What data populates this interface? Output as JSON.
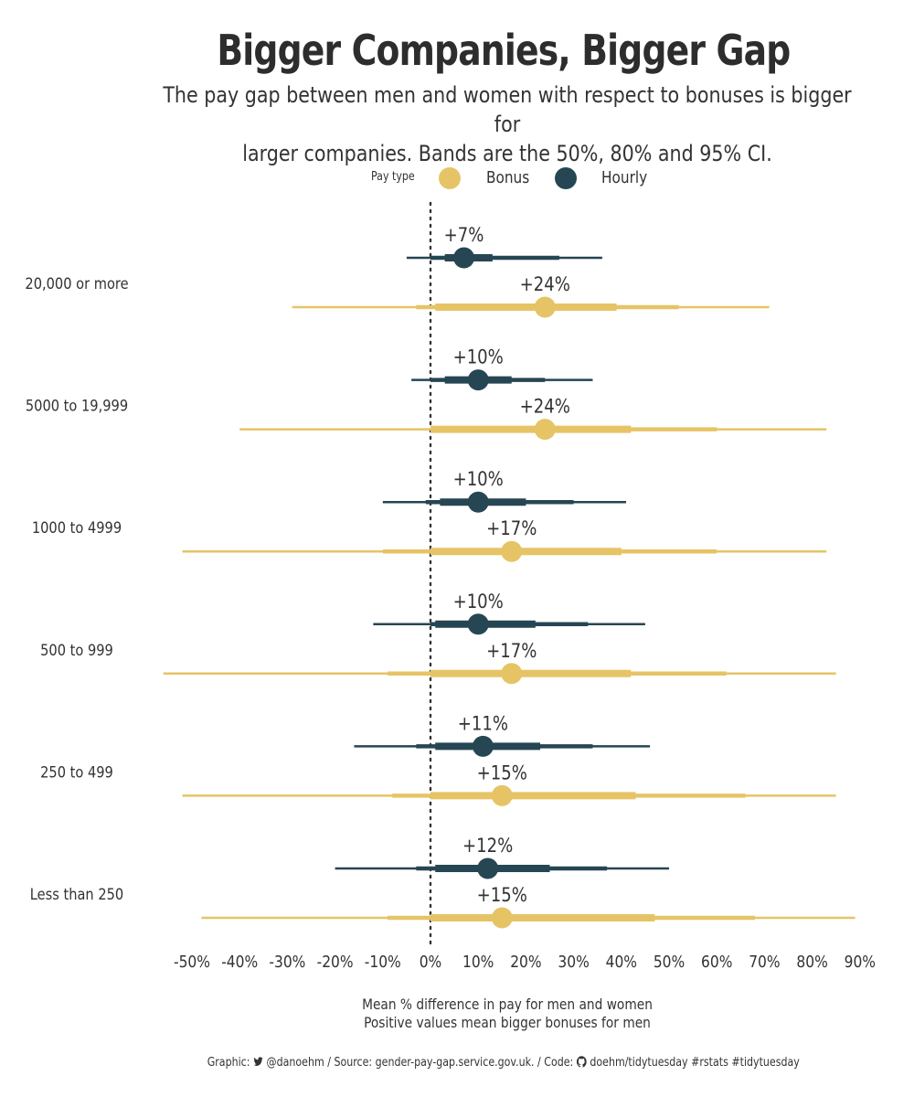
{
  "title": "Bigger Companies, Bigger Gap",
  "subtitle_line1": "The pay gap between men and women with respect to bonuses is bigger for",
  "subtitle_line2": "larger companies. Bands are the 50%, 80% and 95% CI.",
  "legend": {
    "title": "Pay type",
    "items": [
      {
        "label": "Bonus",
        "color": "#e6c466"
      },
      {
        "label": "Hourly",
        "color": "#264653"
      }
    ]
  },
  "colors": {
    "Bonus": "#e6c466",
    "Hourly": "#264653",
    "text": "#333333",
    "zero_line": "#333333"
  },
  "caption": {
    "prefix": "Graphic:",
    "twitter_icon": "twitter-bird-icon",
    "twitter": "@danoehm",
    "source": "/ Source: gender-pay-gap.service.gov.uk. / Code:",
    "github_icon": "github-icon",
    "code": "doehm/tidytuesday #rstats #tidytuesday"
  },
  "chart_data": {
    "type": "interval",
    "x_ticks": [
      "-50%",
      "-40%",
      "-30%",
      "-20%",
      "-10%",
      "0%",
      "10%",
      "20%",
      "30%",
      "40%",
      "50%",
      "60%",
      "70%",
      "80%",
      "90%"
    ],
    "xlim": [
      -55,
      92
    ],
    "xlabel_line1": "Mean % difference in pay for men and women",
    "xlabel_line2": "Positive values mean bigger bonuses for men",
    "reference_line": 0,
    "categories": [
      "20,000 or more",
      "5000 to 19,999",
      "1000 to 4999",
      "500 to 999",
      "250 to 499",
      "Less than 250"
    ],
    "series": [
      {
        "name": "Hourly",
        "points": [
          {
            "category": "20,000 or more",
            "mean": 7,
            "label": "+7%",
            "ci50": [
              3,
              13
            ],
            "ci80": [
              0,
              27
            ],
            "ci95": [
              -5,
              36
            ]
          },
          {
            "category": "5000 to 19,999",
            "mean": 10,
            "label": "+10%",
            "ci50": [
              3,
              17
            ],
            "ci80": [
              0,
              24
            ],
            "ci95": [
              -4,
              34
            ]
          },
          {
            "category": "1000 to 4999",
            "mean": 10,
            "label": "+10%",
            "ci50": [
              2,
              20
            ],
            "ci80": [
              -1,
              30
            ],
            "ci95": [
              -10,
              41
            ]
          },
          {
            "category": "500 to 999",
            "mean": 10,
            "label": "+10%",
            "ci50": [
              1,
              22
            ],
            "ci80": [
              0,
              33
            ],
            "ci95": [
              -12,
              45
            ]
          },
          {
            "category": "250 to 499",
            "mean": 11,
            "label": "+11%",
            "ci50": [
              1,
              23
            ],
            "ci80": [
              -3,
              34
            ],
            "ci95": [
              -16,
              46
            ]
          },
          {
            "category": "Less than 250",
            "mean": 12,
            "label": "+12%",
            "ci50": [
              1,
              25
            ],
            "ci80": [
              -3,
              37
            ],
            "ci95": [
              -20,
              50
            ]
          }
        ]
      },
      {
        "name": "Bonus",
        "points": [
          {
            "category": "20,000 or more",
            "mean": 24,
            "label": "+24%",
            "ci50": [
              1,
              39
            ],
            "ci80": [
              -3,
              52
            ],
            "ci95": [
              -29,
              71
            ]
          },
          {
            "category": "5000 to 19,999",
            "mean": 24,
            "label": "+24%",
            "ci50": [
              0,
              42
            ],
            "ci80": [
              0,
              60
            ],
            "ci95": [
              -40,
              83
            ]
          },
          {
            "category": "1000 to 4999",
            "mean": 17,
            "label": "+17%",
            "ci50": [
              0,
              40
            ],
            "ci80": [
              -10,
              60
            ],
            "ci95": [
              -52,
              83
            ]
          },
          {
            "category": "500 to 999",
            "mean": 17,
            "label": "+17%",
            "ci50": [
              0,
              42
            ],
            "ci80": [
              -9,
              62
            ],
            "ci95": [
              -56,
              85
            ]
          },
          {
            "category": "250 to 499",
            "mean": 15,
            "label": "+15%",
            "ci50": [
              0,
              43
            ],
            "ci80": [
              -8,
              66
            ],
            "ci95": [
              -52,
              85
            ]
          },
          {
            "category": "Less than 250",
            "mean": 15,
            "label": "+15%",
            "ci50": [
              0,
              47
            ],
            "ci80": [
              -9,
              68
            ],
            "ci95": [
              -48,
              89
            ]
          }
        ]
      }
    ]
  }
}
